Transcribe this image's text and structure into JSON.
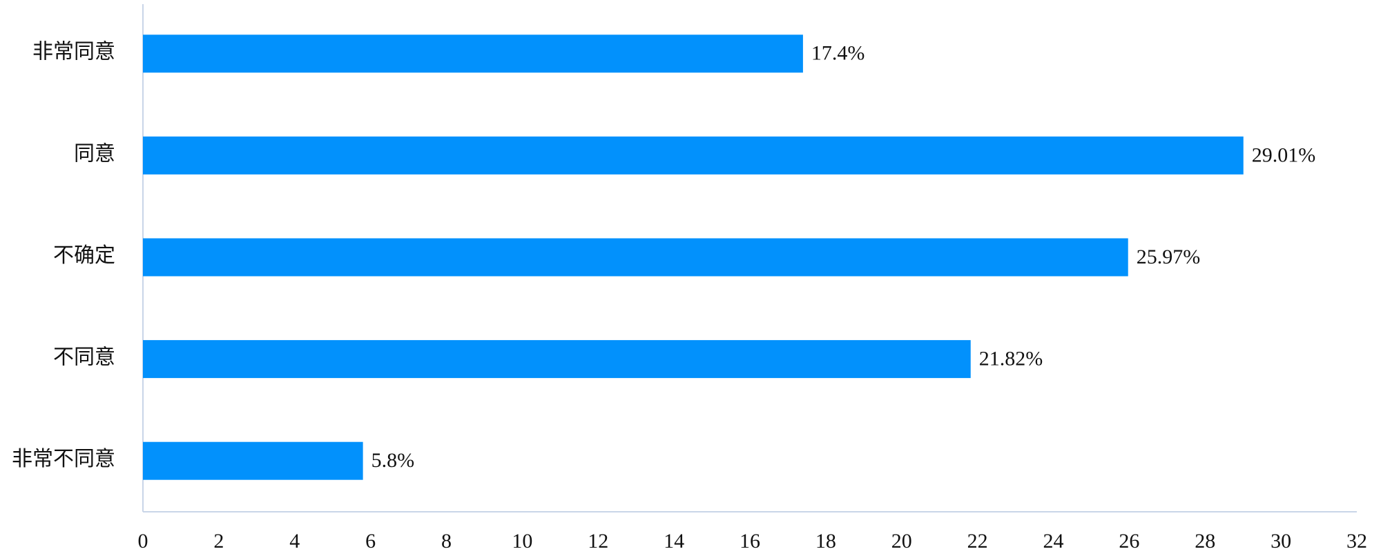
{
  "chart_data": {
    "type": "barh",
    "categories": [
      "非常同意",
      "同意",
      "不确定",
      "不同意",
      "非常不同意"
    ],
    "values": [
      17.4,
      29.01,
      25.97,
      21.82,
      5.8
    ],
    "value_labels": [
      "17.4%",
      "29.01%",
      "25.97%",
      "21.82%",
      "5.8%"
    ],
    "color": "#0291fc",
    "xlim": [
      0,
      32
    ],
    "xticks": [
      0,
      2,
      4,
      6,
      8,
      10,
      12,
      14,
      16,
      18,
      20,
      22,
      24,
      26,
      28,
      30,
      32
    ],
    "grid": false
  }
}
